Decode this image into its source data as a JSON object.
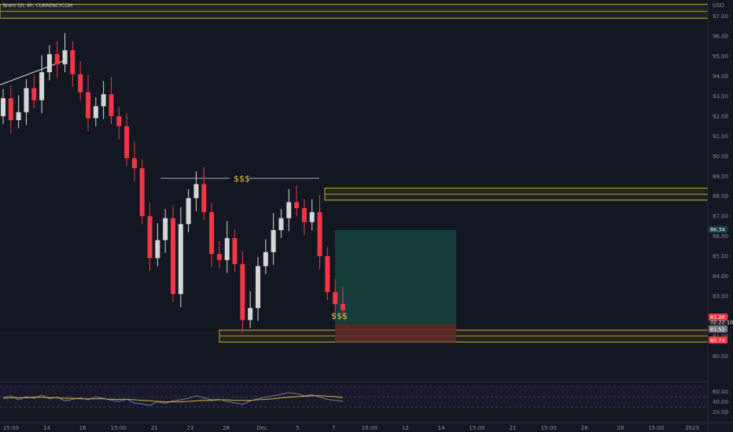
{
  "header": {
    "symbol": "Brent Oil, 4h, CURRENCYCOM",
    "currency": "USD"
  },
  "colors": {
    "background": "#131722",
    "bull": "#d6d6d6",
    "bear": "#f23645",
    "zone": "#c8b52a",
    "rsi": "#7e84b8",
    "rsi_ma": "#c8a63b",
    "target": "#16423e",
    "stop": "#5c2a25"
  },
  "chart_data": [
    {
      "type": "candlestick",
      "x_label_list": [
        "15:00",
        "14",
        "16",
        "15:00",
        "21",
        "23",
        "28",
        "Dec",
        "5",
        "7",
        "15:00",
        "12",
        "14",
        "15:00",
        "21",
        "15:00",
        "26",
        "28",
        "15:00",
        "2023"
      ],
      "y_ticks": [
        "97.00",
        "96.00",
        "95.00",
        "94.00",
        "93.00",
        "92.00",
        "91.00",
        "90.00",
        "89.00",
        "88.00",
        "87.00",
        "86.00",
        "85.00",
        "84.00",
        "83.00",
        "82.00",
        "81.00",
        "80.00"
      ],
      "ylim": [
        79.5,
        97.5
      ],
      "closes": [
        92.9,
        91.8,
        92.2,
        93.4,
        92.8,
        94.2,
        95.1,
        94.6,
        95.3,
        94.1,
        93.2,
        91.9,
        92.5,
        93.1,
        92.0,
        91.5,
        89.9,
        89.4,
        87.0,
        84.9,
        85.8,
        86.9,
        83.1,
        86.6,
        87.9,
        88.6,
        87.2,
        85.1,
        84.8,
        85.9,
        84.6,
        81.8,
        82.4,
        84.5,
        85.2,
        86.3,
        86.9,
        87.7,
        87.4,
        86.7,
        87.2,
        85.0,
        83.2,
        82.6,
        82.3
      ],
      "annotations": {
        "price_current": "81.20",
        "timer": "02:22:10",
        "price_label_2": "81.52",
        "price_label_3": "80.74",
        "price_label_top": "86.34",
        "liquidity_high": "$$$",
        "liquidity_low": "$$$"
      },
      "zones": [
        {
          "low": 96.9,
          "high": 97.6
        },
        {
          "low": 87.8,
          "high": 88.4
        },
        {
          "low": 80.7,
          "high": 81.3
        }
      ],
      "position": {
        "entry": 81.6,
        "target": 86.3,
        "stop": 80.7
      }
    },
    {
      "type": "line",
      "name": "",
      "y_ticks": [
        "60.00",
        "40.00",
        "20.00"
      ],
      "ylim": [
        15,
        70
      ],
      "values": [
        48,
        52,
        44,
        50,
        47,
        53,
        46,
        49,
        42,
        45,
        48,
        44,
        50,
        47,
        43,
        41,
        45,
        38,
        36,
        33,
        40,
        37,
        42,
        44,
        47,
        52,
        48,
        44,
        45,
        41,
        38,
        35,
        42,
        46,
        49,
        52,
        55,
        58,
        56,
        52,
        54,
        49,
        45,
        43,
        41
      ],
      "ma_values": [
        47,
        48,
        48,
        48,
        49,
        49,
        48,
        48,
        47,
        47,
        46,
        46,
        46,
        46,
        45,
        45,
        45,
        44,
        43,
        42,
        41,
        40,
        40,
        40,
        41,
        42,
        43,
        43,
        44,
        44,
        43,
        43,
        43,
        44,
        45,
        46,
        48,
        49,
        50,
        51,
        52,
        52,
        51,
        50,
        48
      ]
    }
  ]
}
